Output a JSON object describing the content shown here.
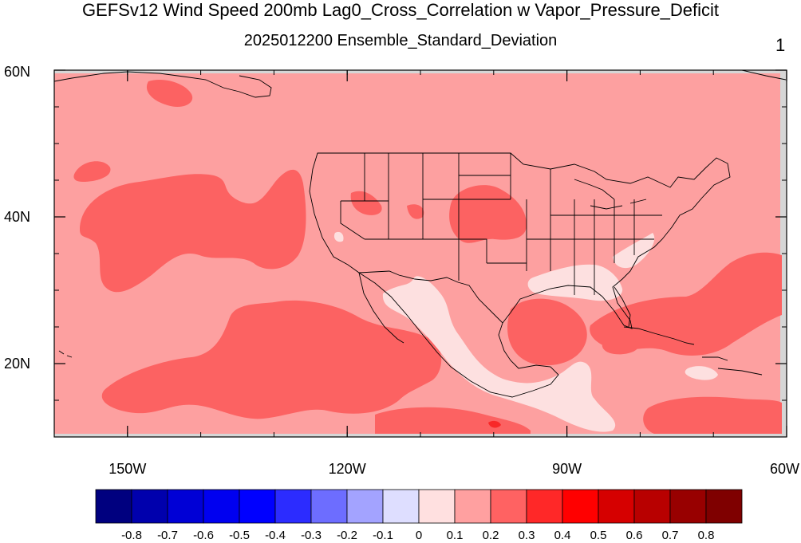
{
  "title": "GEFSv12 Wind Speed 200mb Lag0_Cross_Correlation w Vapor_Pressure_Deficit",
  "subtitle": "2025012200 Ensemble_Standard_Deviation",
  "panel_number": "1",
  "map": {
    "projection": "cylindrical-equidistant",
    "lon_range": [
      -160,
      -60
    ],
    "lat_range": [
      10,
      60
    ],
    "lon_ticks": [
      {
        "value": -150,
        "label": "150W"
      },
      {
        "value": -120,
        "label": "120W"
      },
      {
        "value": -90,
        "label": "90W"
      },
      {
        "value": -60,
        "label": "60W"
      }
    ],
    "lat_ticks": [
      {
        "value": 20,
        "label": "20N"
      },
      {
        "value": 40,
        "label": "40N"
      },
      {
        "value": 60,
        "label": "60N"
      }
    ],
    "dominant_value_bin": "0.1 to 0.2",
    "colors": {
      "background_field": "#fda0a0",
      "higher_field": "#fc6262",
      "lower_field": "#fde0e0",
      "peak_field": "#f82828",
      "missing": "#d6d6d6"
    }
  },
  "colorbar": {
    "labels": [
      "-0.8",
      "-0.7",
      "-0.6",
      "-0.5",
      "-0.4",
      "-0.3",
      "-0.2",
      "-0.1",
      "0",
      "0.1",
      "0.2",
      "0.3",
      "0.4",
      "0.5",
      "0.6",
      "0.7",
      "0.8"
    ],
    "colors": [
      "#00007f",
      "#0000ad",
      "#0000d6",
      "#0000f0",
      "#0000ff",
      "#2c2cff",
      "#6d6dff",
      "#a3a3ff",
      "#dedeff",
      "#ffe0e0",
      "#ffa0a0",
      "#ff6262",
      "#ff2828",
      "#ff0000",
      "#d60000",
      "#b80000",
      "#980000",
      "#7f0000"
    ]
  }
}
